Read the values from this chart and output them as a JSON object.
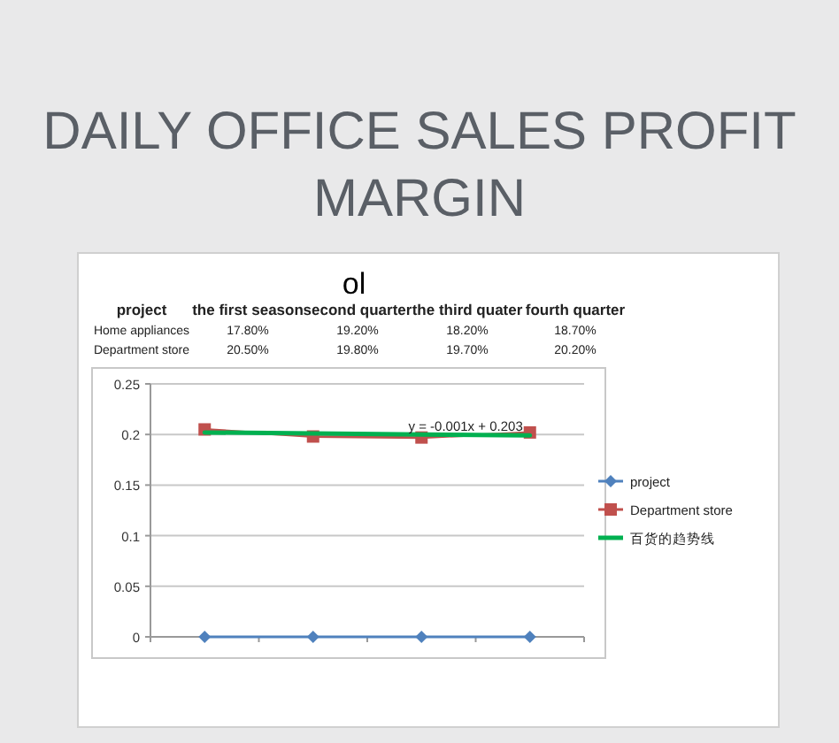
{
  "chart_data": {
    "type": "line",
    "title": "DAILY OFFICE SALES PROFIT MARGIN",
    "subtitle": "ol",
    "categories": [
      null,
      null,
      null,
      null
    ],
    "series": [
      {
        "name": "project",
        "color": "#4f81bd",
        "marker": "diamond",
        "values": [
          0,
          0,
          0,
          0
        ]
      },
      {
        "name": "Department store",
        "color": "#c0504d",
        "marker": "square",
        "values": [
          0.205,
          0.198,
          0.197,
          0.202
        ]
      },
      {
        "name": "百货的趋势线",
        "color": "#00b050",
        "marker": "none",
        "values": [
          0.202,
          0.201,
          0.2,
          0.199
        ]
      }
    ],
    "annotations": [
      "project",
      "the first season",
      "second quarter",
      "the third quater",
      "fourth quarter",
      "Home appliances",
      "17.80%",
      "19.20%",
      "18.20%",
      "18.70%",
      "Department store",
      "20.50%",
      "19.80%",
      "19.70%",
      "20.20%",
      {
        "text": "y = -0.001x + 0.203",
        "y": 0.2
      }
    ],
    "ylim": [
      0,
      0.25
    ],
    "yticks": [
      0,
      0.05,
      0.1,
      0.15,
      0.2,
      0.25
    ],
    "grid": "y",
    "legend": "right"
  }
}
